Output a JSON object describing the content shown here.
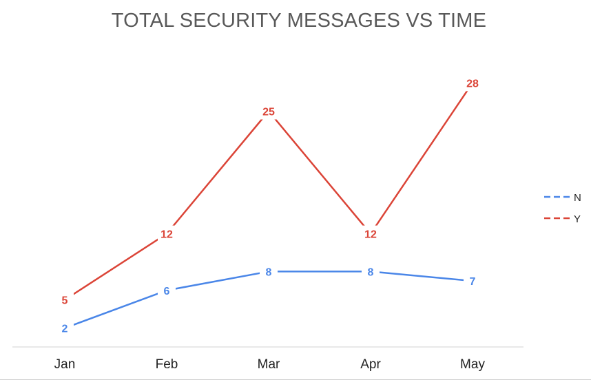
{
  "chart_data": {
    "type": "line",
    "title": "TOTAL SECURITY MESSAGES VS TIME",
    "categories": [
      "Jan",
      "Feb",
      "Mar",
      "Apr",
      "May"
    ],
    "series": [
      {
        "name": "N",
        "values": [
          2,
          6,
          8,
          8,
          7
        ],
        "color": "#4a86e8"
      },
      {
        "name": "Y",
        "values": [
          5,
          12,
          25,
          12,
          28
        ],
        "color": "#db4437"
      }
    ],
    "xlabel": "",
    "ylabel": "",
    "ylim": [
      0,
      32
    ],
    "grid": false,
    "legend_position": "right"
  }
}
